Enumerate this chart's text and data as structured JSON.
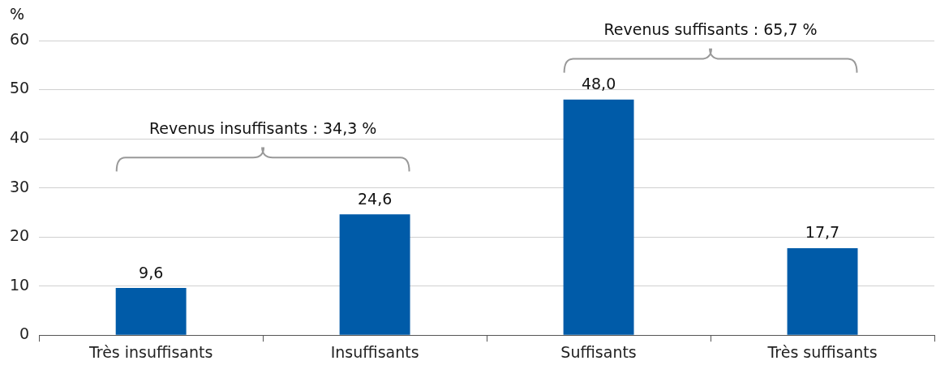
{
  "chart_data": {
    "type": "bar",
    "ylabel": "%",
    "categories": [
      "Très insuffisants",
      "Insuffisants",
      "Suffisants",
      "Très suffisants"
    ],
    "values": [
      9.6,
      24.6,
      48.0,
      17.7
    ],
    "value_labels": [
      "9,6",
      "24,6",
      "48,0",
      "17,7"
    ],
    "color": "#005ba8",
    "ylim": [
      0,
      60
    ],
    "yticks": [
      0,
      10,
      20,
      30,
      40,
      50,
      60
    ],
    "grid": "y",
    "legend": false,
    "annotations": [
      "Revenus insuffisants : 34,3 %",
      "Revenus suffisants : 65,7 %"
    ]
  }
}
